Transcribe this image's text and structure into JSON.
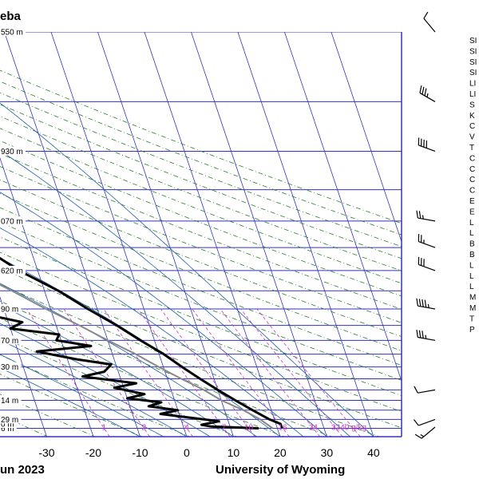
{
  "title_fragment": "eba",
  "footer": {
    "date_fragment": "un 2023",
    "source": "University of Wyoming"
  },
  "index_labels": [
    "SI",
    "SI",
    "SI",
    "SI",
    "LI",
    "LI",
    "S",
    "K",
    "C",
    "V",
    "T",
    "C",
    "C",
    "C",
    "C",
    "E",
    "E",
    "L",
    "L",
    "B",
    "B",
    "L",
    "L",
    "L",
    "M",
    "M",
    "T",
    "P"
  ],
  "colors": {
    "isobar": "#3333bb",
    "isotherm": "#3333bb",
    "dry_adiabat": "#2e7d32",
    "moist_adiabat": "#1e5fa8",
    "mixing_ratio": "#cc33cc",
    "temperature": "#000000",
    "dewpoint": "#000000",
    "parcel": "#888888",
    "wind_barb": "#000000"
  },
  "chart_data": {
    "type": "skew-t",
    "xlabel": "",
    "x_ticks": [
      "-30",
      "-20",
      "-10",
      "0",
      "10",
      "20",
      "30",
      "40"
    ],
    "xlim": [
      -40,
      46
    ],
    "height_labels": [
      {
        "pressure_hPa": 1000,
        "label": "6 m"
      },
      {
        "pressure_hPa": 975,
        "label": "0 m"
      },
      {
        "pressure_hPa": 950,
        "label": "29 m"
      },
      {
        "pressure_hPa": 850,
        "label": "14 m"
      },
      {
        "pressure_hPa": 700,
        "label": "30 m"
      },
      {
        "pressure_hPa": 600,
        "label": "70 m"
      },
      {
        "pressure_hPa": 500,
        "label": "90 m"
      },
      {
        "pressure_hPa": 400,
        "label": "620 m"
      },
      {
        "pressure_hPa": 300,
        "label": "070 m"
      },
      {
        "pressure_hPa": 200,
        "label": "930 m"
      },
      {
        "pressure_hPa": 100,
        "label": "550 m"
      }
    ],
    "mixing_ratio_labels": [
      "0.1",
      "1",
      "2",
      "4",
      "7",
      "10",
      "16",
      "24",
      "32",
      "40 g/kg"
    ],
    "grid": true,
    "series": [
      {
        "name": "",
        "kind": "temperature",
        "points": [
          {
            "p": 1000,
            "t": 21
          },
          {
            "p": 975,
            "t": 21
          },
          {
            "p": 950,
            "t": 19
          },
          {
            "p": 900,
            "t": 16
          },
          {
            "p": 850,
            "t": 13
          },
          {
            "p": 800,
            "t": 10
          },
          {
            "p": 750,
            "t": 7
          },
          {
            "p": 700,
            "t": 4
          },
          {
            "p": 650,
            "t": 1
          },
          {
            "p": 600,
            "t": -3
          },
          {
            "p": 550,
            "t": -7
          },
          {
            "p": 500,
            "t": -12
          },
          {
            "p": 450,
            "t": -17
          },
          {
            "p": 400,
            "t": -24
          },
          {
            "p": 350,
            "t": -30
          },
          {
            "p": 300,
            "t": -37
          },
          {
            "p": 250,
            "t": -45
          },
          {
            "p": 200,
            "t": -52
          },
          {
            "p": 150,
            "t": -59
          },
          {
            "p": 100,
            "t": -68
          }
        ]
      },
      {
        "name": "",
        "kind": "dewpoint",
        "points": [
          {
            "p": 1000,
            "t": 16
          },
          {
            "p": 990,
            "t": 6
          },
          {
            "p": 980,
            "t": 4
          },
          {
            "p": 960,
            "t": 8
          },
          {
            "p": 940,
            "t": 2
          },
          {
            "p": 920,
            "t": -4
          },
          {
            "p": 900,
            "t": 0
          },
          {
            "p": 880,
            "t": -6
          },
          {
            "p": 860,
            "t": -3
          },
          {
            "p": 840,
            "t": -10
          },
          {
            "p": 820,
            "t": -6
          },
          {
            "p": 790,
            "t": -12
          },
          {
            "p": 770,
            "t": -7
          },
          {
            "p": 740,
            "t": -18
          },
          {
            "p": 720,
            "t": -13
          },
          {
            "p": 690,
            "t": -11
          },
          {
            "p": 670,
            "t": -18
          },
          {
            "p": 640,
            "t": -26
          },
          {
            "p": 620,
            "t": -14
          },
          {
            "p": 600,
            "t": -21
          },
          {
            "p": 580,
            "t": -20
          },
          {
            "p": 560,
            "t": -30
          },
          {
            "p": 540,
            "t": -27
          },
          {
            "p": 520,
            "t": -33
          },
          {
            "p": 500,
            "t": -33
          },
          {
            "p": 470,
            "t": -37
          },
          {
            "p": 440,
            "t": -40
          },
          {
            "p": 400,
            "t": -48
          },
          {
            "p": 360,
            "t": -51
          },
          {
            "p": 320,
            "t": -55
          },
          {
            "p": 280,
            "t": -62
          },
          {
            "p": 250,
            "t": -71
          },
          {
            "p": 220,
            "t": -82
          },
          {
            "p": 200,
            "t": -86
          },
          {
            "p": 150,
            "t": -87
          },
          {
            "p": 100,
            "t": -94
          }
        ]
      },
      {
        "name": "",
        "kind": "parcel",
        "points": [
          {
            "p": 1000,
            "t": 19
          },
          {
            "p": 975,
            "t": 18
          },
          {
            "p": 950,
            "t": 17
          },
          {
            "p": 900,
            "t": 14
          },
          {
            "p": 850,
            "t": 10
          },
          {
            "p": 800,
            "t": 7
          },
          {
            "p": 750,
            "t": 3
          },
          {
            "p": 700,
            "t": -1
          },
          {
            "p": 650,
            "t": -5
          },
          {
            "p": 600,
            "t": -10
          },
          {
            "p": 550,
            "t": -15
          },
          {
            "p": 500,
            "t": -21
          },
          {
            "p": 450,
            "t": -27
          },
          {
            "p": 400,
            "t": -34
          },
          {
            "p": 350,
            "t": -42
          },
          {
            "p": 300,
            "t": -51
          },
          {
            "p": 250,
            "t": -61
          },
          {
            "p": 200,
            "t": -72
          },
          {
            "p": 150,
            "t": -85
          },
          {
            "p": 100,
            "t": -100
          }
        ]
      }
    ],
    "wind_barbs": [
      {
        "p": 100,
        "dir": 320,
        "kt": 10
      },
      {
        "p": 150,
        "dir": 300,
        "kt": 35
      },
      {
        "p": 200,
        "dir": 290,
        "kt": 40
      },
      {
        "p": 300,
        "dir": 280,
        "kt": 25
      },
      {
        "p": 350,
        "dir": 290,
        "kt": 25
      },
      {
        "p": 400,
        "dir": 290,
        "kt": 30
      },
      {
        "p": 500,
        "dir": 280,
        "kt": 45
      },
      {
        "p": 600,
        "dir": 280,
        "kt": 35
      },
      {
        "p": 800,
        "dir": 260,
        "kt": 10
      },
      {
        "p": 950,
        "dir": 250,
        "kt": 10
      },
      {
        "p": 1000,
        "dir": 230,
        "kt": 15
      }
    ]
  }
}
